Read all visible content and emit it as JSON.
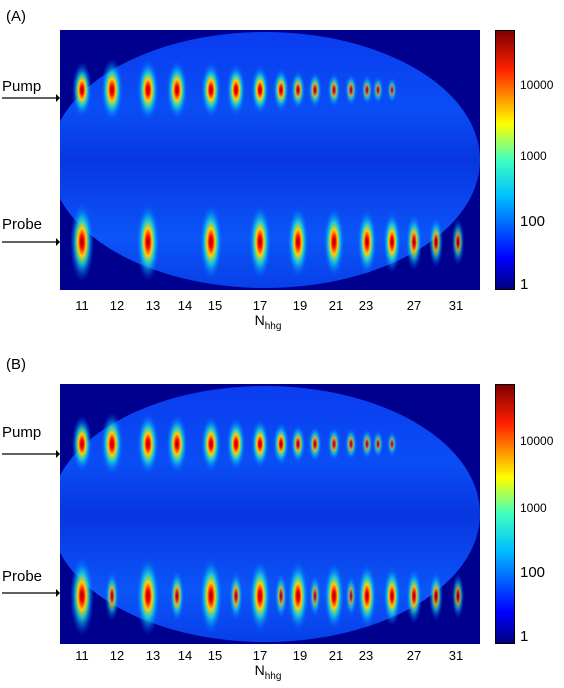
{
  "chart_data": [
    {
      "type": "heatmap",
      "panel_label": "(A)",
      "row_labels": [
        "Pump",
        "Probe"
      ],
      "xlabel": "N",
      "xlabel_sub": "hhg",
      "xticks": [
        "11",
        "12",
        "13",
        "14",
        "15",
        "17",
        "19",
        "21",
        "23",
        "27",
        "31"
      ],
      "colorbar_ticks": [
        "10000",
        "1000",
        "100",
        "1"
      ],
      "colormap": "jet",
      "pump_orders": [
        11,
        12,
        13,
        14,
        15,
        16,
        17,
        18,
        19,
        20,
        21,
        22,
        23,
        24,
        25
      ],
      "pump_intensity": [
        0.78,
        0.92,
        0.9,
        0.86,
        0.8,
        0.74,
        0.68,
        0.58,
        0.5,
        0.45,
        0.42,
        0.38,
        0.34,
        0.3,
        0.26
      ],
      "probe_orders": [
        11,
        13,
        15,
        17,
        19,
        21,
        23,
        25,
        27,
        29,
        31
      ],
      "probe_intensity": [
        1.0,
        0.98,
        0.96,
        0.94,
        0.88,
        0.86,
        0.78,
        0.7,
        0.62,
        0.52,
        0.44
      ]
    },
    {
      "type": "heatmap",
      "panel_label": "(B)",
      "row_labels": [
        "Pump",
        "Probe"
      ],
      "xlabel": "N",
      "xlabel_sub": "hhg",
      "xticks": [
        "11",
        "12",
        "13",
        "14",
        "15",
        "17",
        "19",
        "21",
        "23",
        "27",
        "31"
      ],
      "colorbar_ticks": [
        "10000",
        "1000",
        "100",
        "1"
      ],
      "colormap": "jet",
      "pump_orders": [
        11,
        12,
        13,
        14,
        15,
        16,
        17,
        18,
        19,
        20,
        21,
        22,
        23,
        24,
        25
      ],
      "pump_intensity": [
        0.8,
        0.92,
        0.9,
        0.86,
        0.8,
        0.74,
        0.68,
        0.58,
        0.5,
        0.45,
        0.42,
        0.38,
        0.34,
        0.3,
        0.26
      ],
      "probe_orders": [
        11,
        12,
        13,
        14,
        15,
        16,
        17,
        18,
        19,
        20,
        21,
        22,
        23,
        25,
        27,
        29,
        31
      ],
      "probe_intensity": [
        1.0,
        0.5,
        0.98,
        0.55,
        0.96,
        0.5,
        0.9,
        0.45,
        0.86,
        0.4,
        0.82,
        0.38,
        0.76,
        0.68,
        0.6,
        0.5,
        0.42
      ]
    }
  ]
}
